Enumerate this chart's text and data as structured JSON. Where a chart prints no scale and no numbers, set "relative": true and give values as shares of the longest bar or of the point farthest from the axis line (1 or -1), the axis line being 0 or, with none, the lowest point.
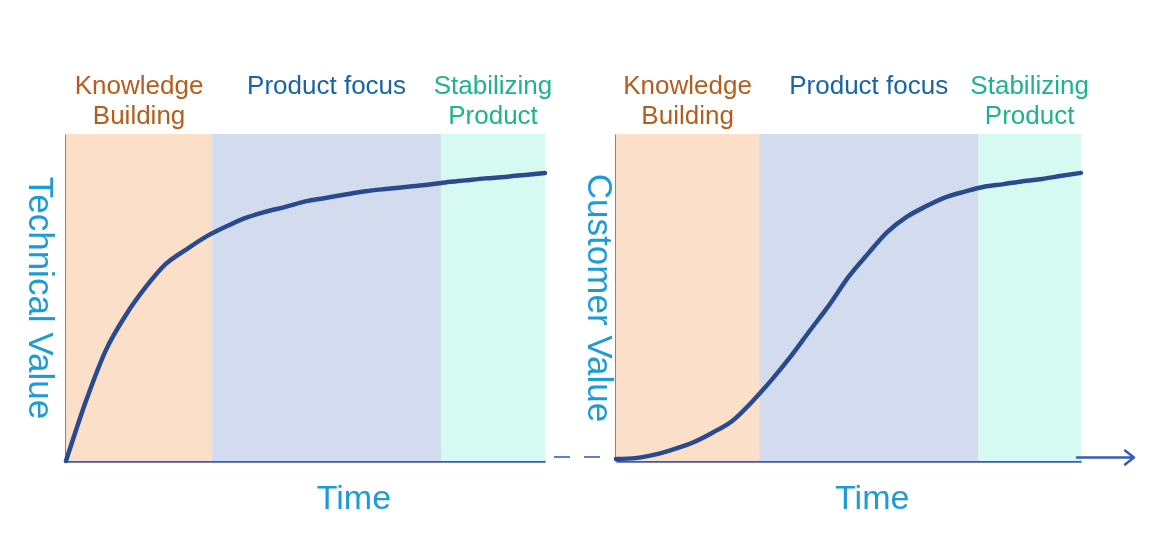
{
  "chart_data": [
    {
      "type": "line",
      "xlabel": "Time",
      "ylabel": "Technical Value",
      "relative": true,
      "categories": [
        null,
        null,
        null,
        null,
        null,
        null,
        null,
        null,
        null,
        null,
        null,
        null,
        null,
        null,
        null,
        null,
        null,
        null,
        null,
        null,
        null,
        null,
        null,
        null,
        null
      ],
      "series": [
        {
          "color": "#2a4a8e",
          "values": [
            0,
            0.208,
            0.385,
            0.507,
            0.604,
            0.684,
            0.733,
            0.778,
            0.813,
            0.844,
            0.865,
            0.882,
            0.901,
            0.913,
            0.925,
            0.936,
            0.944,
            0.951,
            0.958,
            0.967,
            0.974,
            0.981,
            0.986,
            0.993,
            1
          ]
        }
      ],
      "annotations": [
        "Knowledge\nBuilding",
        "Product focus",
        "Stabilizing\nProduct"
      ]
    },
    {
      "type": "line",
      "xlabel": "Time",
      "ylabel": "Customer Value",
      "relative": true,
      "categories": [
        null,
        null,
        null,
        null,
        null,
        null,
        null,
        null,
        null,
        null,
        null,
        null,
        null,
        null,
        null,
        null,
        null,
        null,
        null,
        null,
        null,
        null,
        null,
        null,
        null
      ],
      "series": [
        {
          "color": "#2a4a8e",
          "values": [
            0.007,
            0.01,
            0.022,
            0.041,
            0.065,
            0.099,
            0.139,
            0.204,
            0.279,
            0.361,
            0.452,
            0.541,
            0.639,
            0.719,
            0.794,
            0.847,
            0.884,
            0.915,
            0.935,
            0.952,
            0.961,
            0.971,
            0.979,
            0.99,
            1
          ]
        }
      ],
      "annotations": [
        "Knowledge\nBuilding",
        "Product focus",
        "Stabilizing\nProduct"
      ]
    }
  ]
}
